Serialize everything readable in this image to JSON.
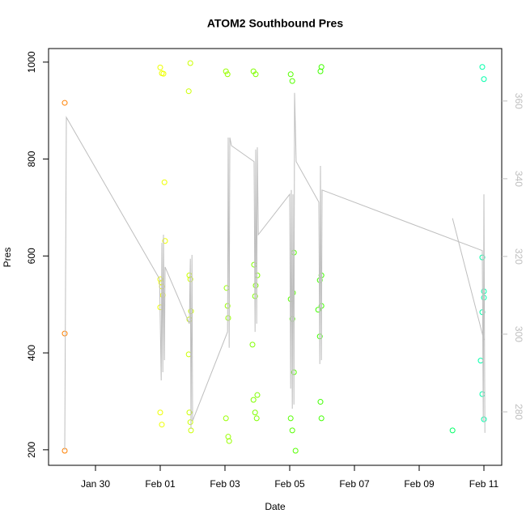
{
  "chart_data": {
    "type": "scatter",
    "title": "ATOM2 Southbound Pres",
    "x_label": "Date",
    "y_label": "Pres",
    "xlim": [
      28.55,
      42.55
    ],
    "xticks": [
      {
        "value": 30,
        "label": "Jan 30"
      },
      {
        "value": 32,
        "label": "Feb 01"
      },
      {
        "value": 34,
        "label": "Feb 03"
      },
      {
        "value": 36,
        "label": "Feb 05"
      },
      {
        "value": 38,
        "label": "Feb 07"
      },
      {
        "value": 40,
        "label": "Feb 09"
      },
      {
        "value": 42,
        "label": "Feb 11"
      }
    ],
    "ylim": [
      168,
      1028
    ],
    "yticks": [
      200,
      400,
      600,
      800,
      1000
    ],
    "y2lim": [
      266.25,
      373.5
    ],
    "y2ticks": [
      280,
      300,
      320,
      340,
      360
    ],
    "series": [
      {
        "color": "#ff8000",
        "x": [
          29.05,
          29.05,
          29.05
        ],
        "values": [
          916,
          440,
          198
        ]
      },
      {
        "color": "#eeff00",
        "x": [
          32.0,
          32.05,
          32.1,
          32.13,
          32.15,
          32.0,
          32.03,
          32.05,
          32.08,
          32.0,
          32.0,
          32.05
        ],
        "values": [
          989,
          977,
          976,
          752,
          631,
          552,
          545,
          537,
          519,
          494,
          277,
          252
        ]
      },
      {
        "color": "#ccff00",
        "x": [
          32.93,
          32.88,
          32.9,
          32.93,
          32.95,
          32.9,
          32.88,
          32.9,
          32.93,
          32.95
        ],
        "values": [
          998,
          940,
          560,
          552,
          486,
          469,
          397,
          277,
          257,
          240
        ]
      },
      {
        "color": "#99ff00",
        "x": [
          34.03,
          34.08,
          34.05,
          34.08,
          34.1,
          34.03,
          34.1,
          34.13
        ],
        "values": [
          981,
          975,
          534,
          497,
          472,
          265,
          227,
          218
        ]
      },
      {
        "color": "#80ff00",
        "x": [
          34.88,
          34.95,
          34.9,
          35.0,
          34.95,
          34.93,
          34.85,
          35.0,
          34.88,
          34.93,
          34.98
        ],
        "values": [
          981,
          975,
          582,
          560,
          539,
          517,
          417,
          313,
          303,
          277,
          265
        ]
      },
      {
        "color": "#55ff00",
        "x": [
          36.03,
          36.08,
          36.13,
          36.1,
          36.03,
          36.08,
          36.13,
          36.03,
          36.08,
          36.18
        ],
        "values": [
          975,
          961,
          607,
          524,
          511,
          470,
          360,
          265,
          240,
          198
        ]
      },
      {
        "color": "#40ff00",
        "x": [
          36.98,
          36.95,
          36.98,
          36.93,
          36.98,
          36.88,
          36.93,
          36.95,
          36.98
        ],
        "values": [
          990,
          981,
          560,
          550,
          497,
          489,
          434,
          299,
          265
        ]
      },
      {
        "color": "#00ff66",
        "x": [
          41.03
        ],
        "values": [
          240
        ]
      },
      {
        "color": "#00ffaa",
        "x": [
          41.95,
          42.0,
          41.95,
          42.0,
          42.0,
          41.95,
          41.9,
          41.95,
          42.0
        ],
        "values": [
          990,
          965,
          597,
          527,
          514,
          484,
          384,
          315,
          263
        ]
      },
      {
        "type": "line",
        "axis": "y2",
        "color": "#bebebe",
        "x": [
          29.05,
          29.1,
          31.98,
          32.03,
          32.05,
          32.08,
          32.1,
          32.13,
          32.15,
          32.9,
          32.93,
          32.95,
          32.98,
          33.0,
          34.08,
          34.1,
          34.13,
          34.15,
          34.2,
          34.9,
          34.93,
          34.95,
          34.98,
          35.0,
          35.03,
          36.0,
          36.03,
          36.05,
          36.08,
          36.1,
          36.13,
          36.15,
          36.2,
          36.9,
          36.93,
          36.95,
          36.98,
          37.0,
          41.95,
          41.98,
          42.0,
          42.03,
          null,
          41.03,
          42.0
        ],
        "values": [
          270.2,
          355.8,
          314.2,
          288.1,
          323.5,
          290.2,
          325.6,
          293.3,
          317.3,
          302.7,
          319.4,
          275.6,
          320.4,
          277.7,
          300.6,
          350.6,
          296.5,
          350.6,
          348.5,
          344.4,
          300.6,
          347.5,
          302.7,
          348.1,
          325.6,
          336.0,
          286.0,
          337.1,
          280.8,
          336.0,
          281.9,
          362.1,
          344.4,
          334.0,
          292.3,
          343.3,
          293.3,
          337.1,
          321.5,
          277.7,
          336.0,
          274.6,
          null,
          329.8,
          298.5
        ]
      }
    ]
  }
}
